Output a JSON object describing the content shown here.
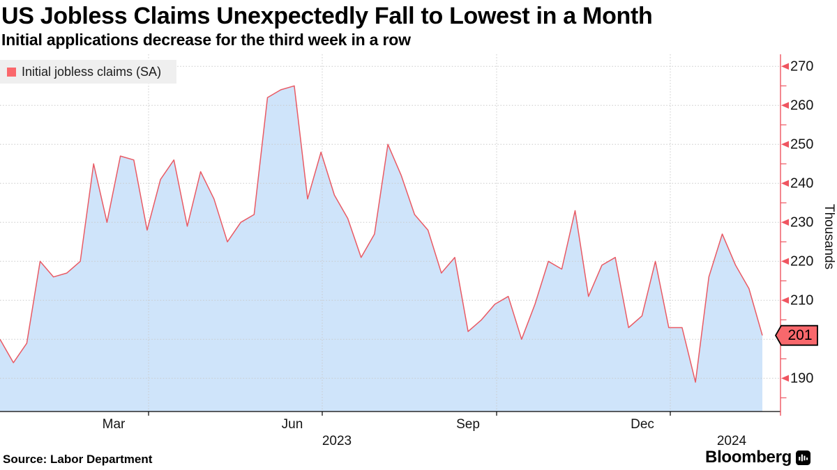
{
  "page": {
    "source": "Source: Labor Department",
    "brand": "Bloomberg"
  },
  "chart_data": {
    "type": "area",
    "title": "US Jobless Claims Unexpectedly Fall to Lowest in a Month",
    "subtitle": "Initial applications decrease for the third week in a row",
    "legend_label": "Initial jobless claims (SA)",
    "legend_position": "top-left",
    "ylabel": "Thousands",
    "grid": "dotted",
    "ylim": [
      182,
      273
    ],
    "x_week_ending": [
      "2023-01-14",
      "2023-01-21",
      "2023-01-28",
      "2023-02-04",
      "2023-02-11",
      "2023-02-18",
      "2023-02-25",
      "2023-03-04",
      "2023-03-11",
      "2023-03-18",
      "2023-03-25",
      "2023-04-01",
      "2023-04-08",
      "2023-04-15",
      "2023-04-22",
      "2023-04-29",
      "2023-05-06",
      "2023-05-13",
      "2023-05-20",
      "2023-05-27",
      "2023-06-03",
      "2023-06-10",
      "2023-06-17",
      "2023-06-24",
      "2023-07-01",
      "2023-07-08",
      "2023-07-15",
      "2023-07-22",
      "2023-07-29",
      "2023-08-05",
      "2023-08-12",
      "2023-08-19",
      "2023-08-26",
      "2023-09-02",
      "2023-09-09",
      "2023-09-16",
      "2023-09-23",
      "2023-09-30",
      "2023-10-07",
      "2023-10-14",
      "2023-10-21",
      "2023-10-28",
      "2023-11-04",
      "2023-11-11",
      "2023-11-18",
      "2023-11-25",
      "2023-12-02",
      "2023-12-09",
      "2023-12-16",
      "2023-12-23",
      "2023-12-30",
      "2024-01-06",
      "2024-01-13",
      "2024-01-20",
      "2024-01-27",
      "2024-02-03",
      "2024-02-10",
      "2024-02-17"
    ],
    "values": [
      200,
      194,
      199,
      220,
      216,
      217,
      220,
      245,
      230,
      247,
      246,
      228,
      241,
      246,
      229,
      243,
      236,
      225,
      230,
      232,
      262,
      264,
      265,
      236,
      248,
      237,
      231,
      221,
      227,
      250,
      242,
      232,
      228,
      217,
      221,
      202,
      205,
      209,
      211,
      200,
      209,
      220,
      218,
      233,
      211,
      219,
      221,
      203,
      206,
      220,
      203,
      203,
      189,
      216,
      227,
      219,
      213,
      201
    ],
    "last_value_label": "201",
    "y_gridlines": [
      190,
      200,
      210,
      220,
      230,
      240,
      250,
      260,
      270
    ],
    "y_major_ticks": [
      190,
      210,
      220,
      230,
      240,
      250,
      260,
      270
    ],
    "y_minor_ticks": [
      185,
      195,
      205,
      215,
      225,
      235,
      245,
      255,
      265
    ],
    "x_tick_labels": [
      "Mar",
      "Jun",
      "Sep",
      "Dec"
    ],
    "x_year_labels": [
      "2023",
      "2024"
    ],
    "colors": {
      "line": "#e95a64",
      "fill": "#cfe4fa",
      "axis": "#ef5560",
      "badge": "#f8686c",
      "legend_swatch": "#fa686c",
      "grid": "#c9c9c9",
      "legend_bg": "#efefef",
      "text": "#141414"
    }
  }
}
